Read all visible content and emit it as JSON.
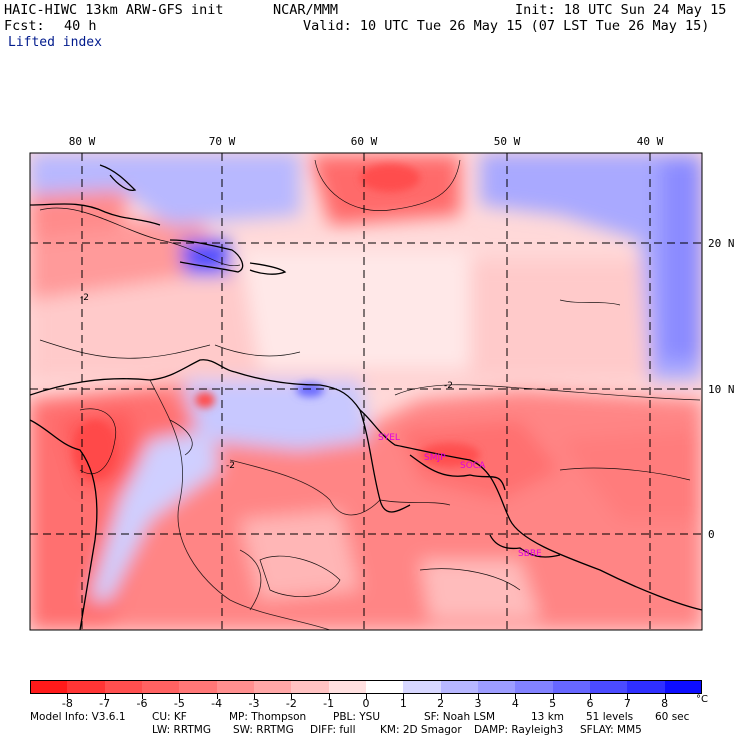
{
  "header": {
    "model_title": "HAIC-HIWC 13km ARW-GFS init",
    "org": "NCAR/MMM",
    "init": "Init: 18 UTC Sun 24 May 15",
    "fcst_label": "Fcst:",
    "fcst_value": "40 h",
    "valid": "Valid: 10 UTC Tue 26 May 15 (07 LST Tue 26 May 15)",
    "field_name": "Lifted index"
  },
  "map": {
    "lon_labels": [
      "80 W",
      "70 W",
      "60 W",
      "50 W",
      "40 W"
    ],
    "lat_labels": [
      "20 N",
      "10 N",
      "0"
    ],
    "station_labels": [
      "SYEL",
      "SMJP",
      "SOCA",
      "SBBE"
    ],
    "station_color": "#e000e0",
    "contour_label": "-2"
  },
  "colorbar": {
    "ticks": [
      "-8",
      "-7",
      "-6",
      "-5",
      "-4",
      "-3",
      "-2",
      "-1",
      "0",
      "1",
      "2",
      "3",
      "4",
      "5",
      "6",
      "7",
      "8"
    ],
    "unit": "°C",
    "colors": [
      "#ff1a1a",
      "#ff3535",
      "#ff4f4f",
      "#ff6262",
      "#ff7777",
      "#ff8f8f",
      "#ffa7a7",
      "#ffc2c2",
      "#ffe0e0",
      "#ffffff",
      "#d7d7ff",
      "#b7b7ff",
      "#9d9dff",
      "#8282ff",
      "#6767ff",
      "#4b4bff",
      "#2f2fff",
      "#0d0dff"
    ]
  },
  "footer": {
    "line1": [
      "Model Info: V3.6.1",
      "CU: KF",
      "MP: Thompson",
      "PBL: YSU",
      "SF: Noah LSM",
      "13 km",
      "51 levels",
      "60 sec"
    ],
    "line2": [
      "LW: RRTMG",
      "SW: RRTMG",
      "DIFF: full",
      "KM: 2D Smagor",
      "DAMP: Rayleigh3",
      "SFLAY: MM5"
    ]
  }
}
